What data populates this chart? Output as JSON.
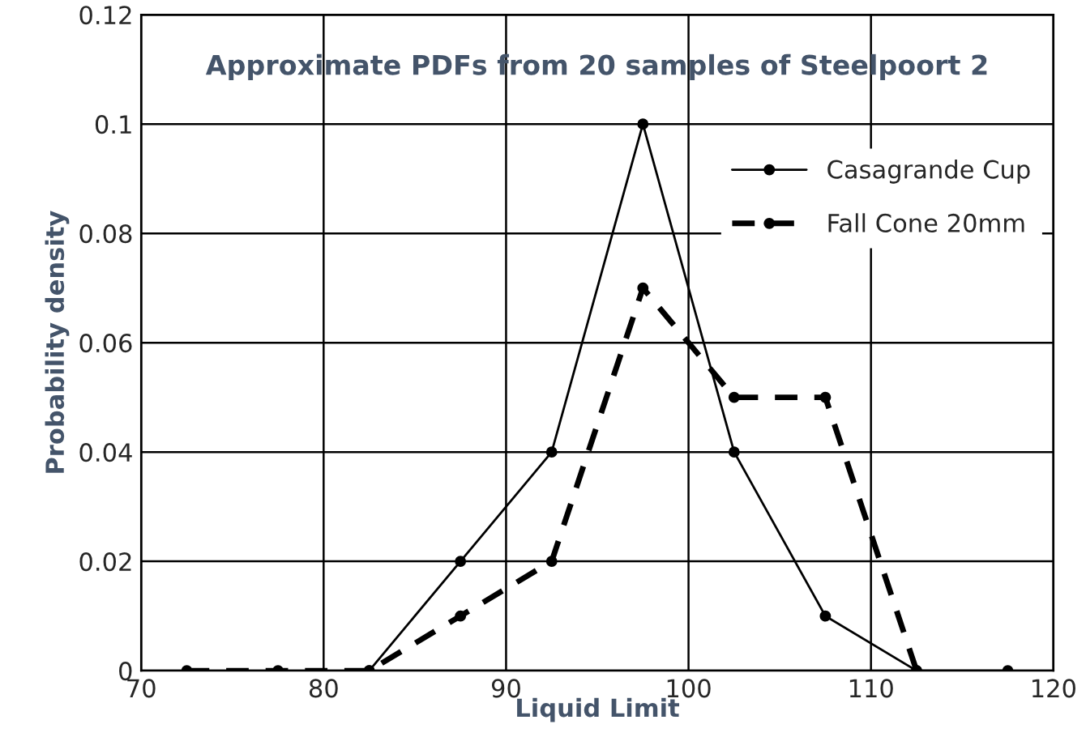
{
  "chart_data": {
    "type": "line",
    "title": "Approximate PDFs from 20 samples of Steelpoort 2",
    "xlabel": "Liquid Limit",
    "ylabel": "Probability density",
    "series": [
      {
        "name": "Casagrande Cup",
        "color": "#000000",
        "x": [
          82.5,
          87.5,
          92.5,
          97.5,
          102.5,
          107.5,
          112.5,
          117.5
        ],
        "values": [
          0,
          0.02,
          0.04,
          0.1,
          0.04,
          0.01,
          0,
          0
        ],
        "line_style": "solid"
      },
      {
        "name": "Fall Cone 20mm",
        "color": "#000000",
        "x": [
          72.5,
          77.5,
          82.5,
          87.5,
          92.5,
          97.5,
          102.5,
          107.5,
          112.5
        ],
        "values": [
          0,
          0,
          0,
          0.01,
          0.02,
          0.07,
          0.05,
          0.05,
          0
        ],
        "line_style": "dashed"
      }
    ],
    "xlim": [
      70,
      120
    ],
    "xticks": [
      70,
      80,
      90,
      100,
      110,
      120
    ],
    "ylim": [
      0,
      0.12
    ],
    "yticks": [
      0,
      0.02,
      0.04,
      0.06,
      0.08,
      0.1,
      0.12
    ],
    "grid": true,
    "legend": "right",
    "marker": "circle"
  }
}
